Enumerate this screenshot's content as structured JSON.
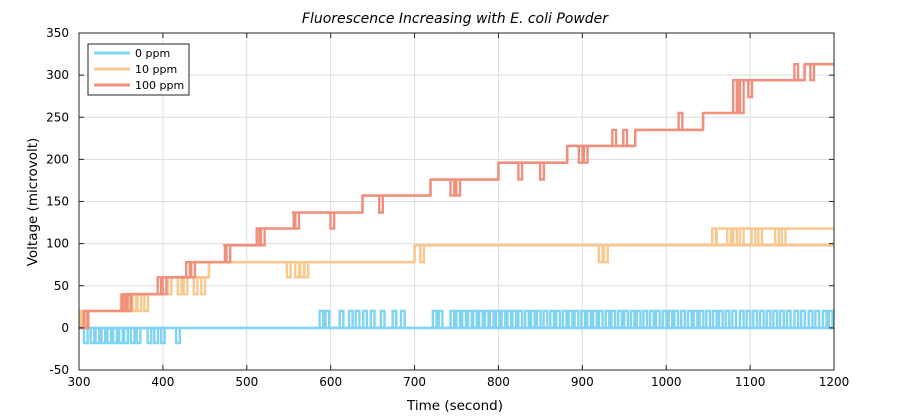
{
  "chart_data": {
    "type": "line",
    "title": "Fluorescence Increasing with E. coli Powder",
    "xlabel": "Time (second)",
    "ylabel": "Voltage (microvolt)",
    "xlim": [
      300,
      1200
    ],
    "ylim": [
      -50,
      350
    ],
    "xticks": [
      "300",
      "400",
      "500",
      "600",
      "700",
      "800",
      "900",
      "1000",
      "1100",
      "1200"
    ],
    "yticks": [
      "-50",
      "0",
      "50",
      "100",
      "150",
      "200",
      "250",
      "300",
      "350"
    ],
    "grid": true,
    "legend_position": "top-left",
    "series": [
      {
        "name": "0 ppm",
        "color": "#7fd3f3",
        "baseline": [
          [
            300,
            0
          ],
          [
            1200,
            0
          ]
        ],
        "spikes": [
          {
            "x": 308,
            "y": -18
          },
          {
            "x": 316,
            "y": -18
          },
          {
            "x": 322,
            "y": -18
          },
          {
            "x": 329,
            "y": -18
          },
          {
            "x": 336,
            "y": -18
          },
          {
            "x": 343,
            "y": -18
          },
          {
            "x": 350,
            "y": -18
          },
          {
            "x": 356,
            "y": -18
          },
          {
            "x": 364,
            "y": -18
          },
          {
            "x": 371,
            "y": -18
          },
          {
            "x": 384,
            "y": -18
          },
          {
            "x": 392,
            "y": -18
          },
          {
            "x": 400,
            "y": -18
          },
          {
            "x": 418,
            "y": -18
          },
          {
            "x": 589,
            "y": 20
          },
          {
            "x": 596,
            "y": 20
          },
          {
            "x": 613,
            "y": 20
          },
          {
            "x": 624,
            "y": 20
          },
          {
            "x": 632,
            "y": 20
          },
          {
            "x": 641,
            "y": 20
          },
          {
            "x": 650,
            "y": 20
          },
          {
            "x": 662,
            "y": 20
          },
          {
            "x": 676,
            "y": 20
          },
          {
            "x": 686,
            "y": 20
          },
          {
            "x": 724,
            "y": 20
          },
          {
            "x": 731,
            "y": 20
          },
          {
            "x": 745,
            "y": 20
          },
          {
            "x": 752,
            "y": 20
          },
          {
            "x": 759,
            "y": 20
          },
          {
            "x": 766,
            "y": 20
          },
          {
            "x": 772,
            "y": 20
          },
          {
            "x": 779,
            "y": 20
          },
          {
            "x": 786,
            "y": 20
          },
          {
            "x": 792,
            "y": 20
          },
          {
            "x": 799,
            "y": 20
          },
          {
            "x": 806,
            "y": 20
          },
          {
            "x": 813,
            "y": 20
          },
          {
            "x": 819,
            "y": 20
          },
          {
            "x": 826,
            "y": 20
          },
          {
            "x": 834,
            "y": 20
          },
          {
            "x": 841,
            "y": 20
          },
          {
            "x": 848,
            "y": 20
          },
          {
            "x": 856,
            "y": 20
          },
          {
            "x": 864,
            "y": 20
          },
          {
            "x": 871,
            "y": 20
          },
          {
            "x": 879,
            "y": 20
          },
          {
            "x": 886,
            "y": 20
          },
          {
            "x": 893,
            "y": 20
          },
          {
            "x": 901,
            "y": 20
          },
          {
            "x": 908,
            "y": 20
          },
          {
            "x": 915,
            "y": 20
          },
          {
            "x": 922,
            "y": 20
          },
          {
            "x": 930,
            "y": 20
          },
          {
            "x": 937,
            "y": 20
          },
          {
            "x": 945,
            "y": 20
          },
          {
            "x": 952,
            "y": 20
          },
          {
            "x": 960,
            "y": 20
          },
          {
            "x": 967,
            "y": 20
          },
          {
            "x": 975,
            "y": 20
          },
          {
            "x": 983,
            "y": 20
          },
          {
            "x": 990,
            "y": 20
          },
          {
            "x": 998,
            "y": 20
          },
          {
            "x": 1005,
            "y": 20
          },
          {
            "x": 1012,
            "y": 20
          },
          {
            "x": 1020,
            "y": 20
          },
          {
            "x": 1028,
            "y": 20
          },
          {
            "x": 1035,
            "y": 20
          },
          {
            "x": 1042,
            "y": 20
          },
          {
            "x": 1050,
            "y": 20
          },
          {
            "x": 1058,
            "y": 20
          },
          {
            "x": 1065,
            "y": 20
          },
          {
            "x": 1073,
            "y": 20
          },
          {
            "x": 1081,
            "y": 20
          },
          {
            "x": 1090,
            "y": 20
          },
          {
            "x": 1098,
            "y": 20
          },
          {
            "x": 1106,
            "y": 20
          },
          {
            "x": 1114,
            "y": 20
          },
          {
            "x": 1122,
            "y": 20
          },
          {
            "x": 1130,
            "y": 20
          },
          {
            "x": 1138,
            "y": 20
          },
          {
            "x": 1146,
            "y": 20
          },
          {
            "x": 1155,
            "y": 20
          },
          {
            "x": 1163,
            "y": 20
          },
          {
            "x": 1172,
            "y": 20
          },
          {
            "x": 1180,
            "y": 20
          },
          {
            "x": 1189,
            "y": 20
          },
          {
            "x": 1196,
            "y": 20
          }
        ]
      },
      {
        "name": "10 ppm",
        "color": "#f8c88e",
        "steps": [
          [
            300,
            0
          ],
          [
            311,
            0
          ],
          [
            311,
            20
          ],
          [
            360,
            20
          ],
          [
            360,
            40
          ],
          [
            398,
            40
          ],
          [
            398,
            60
          ],
          [
            455,
            60
          ],
          [
            455,
            78
          ],
          [
            700,
            78
          ],
          [
            700,
            98
          ],
          [
            1200,
            98
          ]
        ],
        "step_final": [
          [
            1060,
            98
          ],
          [
            1060,
            118
          ],
          [
            1200,
            118
          ]
        ],
        "spikes": [
          {
            "x": 300,
            "y": 20
          },
          {
            "x": 304,
            "y": 20
          },
          {
            "x": 307,
            "y": 20
          },
          {
            "x": 352,
            "y": 40
          },
          {
            "x": 366,
            "y": 20
          },
          {
            "x": 372,
            "y": 20
          },
          {
            "x": 380,
            "y": 20
          },
          {
            "x": 408,
            "y": 40
          },
          {
            "x": 420,
            "y": 40
          },
          {
            "x": 427,
            "y": 40
          },
          {
            "x": 439,
            "y": 40
          },
          {
            "x": 448,
            "y": 40
          },
          {
            "x": 542,
            "y": 78
          },
          {
            "x": 550,
            "y": 60
          },
          {
            "x": 560,
            "y": 60
          },
          {
            "x": 566,
            "y": 60
          },
          {
            "x": 571,
            "y": 60
          },
          {
            "x": 709,
            "y": 78
          },
          {
            "x": 741,
            "y": 98
          },
          {
            "x": 748,
            "y": 98
          },
          {
            "x": 755,
            "y": 98
          },
          {
            "x": 763,
            "y": 98
          },
          {
            "x": 772,
            "y": 98
          },
          {
            "x": 781,
            "y": 98
          },
          {
            "x": 788,
            "y": 98
          },
          {
            "x": 795,
            "y": 98
          },
          {
            "x": 802,
            "y": 98
          },
          {
            "x": 809,
            "y": 98
          },
          {
            "x": 817,
            "y": 98
          },
          {
            "x": 825,
            "y": 98
          },
          {
            "x": 832,
            "y": 98
          },
          {
            "x": 840,
            "y": 98
          },
          {
            "x": 848,
            "y": 98
          },
          {
            "x": 856,
            "y": 98
          },
          {
            "x": 866,
            "y": 98
          },
          {
            "x": 874,
            "y": 98
          },
          {
            "x": 885,
            "y": 98
          },
          {
            "x": 922,
            "y": 78
          },
          {
            "x": 928,
            "y": 78
          },
          {
            "x": 1057,
            "y": 118
          },
          {
            "x": 1075,
            "y": 98
          },
          {
            "x": 1082,
            "y": 98
          },
          {
            "x": 1090,
            "y": 98
          },
          {
            "x": 1104,
            "y": 98
          },
          {
            "x": 1112,
            "y": 98
          },
          {
            "x": 1132,
            "y": 98
          },
          {
            "x": 1140,
            "y": 98
          }
        ]
      },
      {
        "name": "100 ppm",
        "color": "#ef8f7c",
        "steps": [
          [
            300,
            0
          ],
          [
            311,
            0
          ],
          [
            311,
            20
          ],
          [
            352,
            20
          ],
          [
            352,
            40
          ],
          [
            398,
            40
          ],
          [
            398,
            60
          ],
          [
            433,
            60
          ],
          [
            433,
            78
          ],
          [
            474,
            78
          ],
          [
            474,
            98
          ],
          [
            515,
            98
          ],
          [
            515,
            118
          ],
          [
            556,
            118
          ],
          [
            556,
            137
          ],
          [
            638,
            137
          ],
          [
            638,
            157
          ],
          [
            719,
            157
          ],
          [
            719,
            176
          ],
          [
            800,
            176
          ],
          [
            800,
            196
          ],
          [
            882,
            196
          ],
          [
            882,
            216
          ],
          [
            963,
            216
          ],
          [
            963,
            235
          ],
          [
            1044,
            235
          ],
          [
            1044,
            255
          ],
          [
            1085,
            255
          ],
          [
            1085,
            294
          ],
          [
            1165,
            294
          ],
          [
            1165,
            313
          ],
          [
            1200,
            313
          ]
        ],
        "spikes": [
          {
            "x": 308,
            "y": 20
          },
          {
            "x": 353,
            "y": 20
          },
          {
            "x": 356,
            "y": 40
          },
          {
            "x": 360,
            "y": 20
          },
          {
            "x": 396,
            "y": 60
          },
          {
            "x": 402,
            "y": 40
          },
          {
            "x": 430,
            "y": 78
          },
          {
            "x": 436,
            "y": 60
          },
          {
            "x": 474,
            "y": 98
          },
          {
            "x": 478,
            "y": 78
          },
          {
            "x": 514,
            "y": 118
          },
          {
            "x": 519,
            "y": 98
          },
          {
            "x": 523,
            "y": 118
          },
          {
            "x": 556,
            "y": 137
          },
          {
            "x": 560,
            "y": 118
          },
          {
            "x": 588,
            "y": 137
          },
          {
            "x": 596,
            "y": 137
          },
          {
            "x": 602,
            "y": 118
          },
          {
            "x": 655,
            "y": 157
          },
          {
            "x": 660,
            "y": 137
          },
          {
            "x": 665,
            "y": 157
          },
          {
            "x": 737,
            "y": 176
          },
          {
            "x": 745,
            "y": 157
          },
          {
            "x": 752,
            "y": 157
          },
          {
            "x": 820,
            "y": 196
          },
          {
            "x": 826,
            "y": 176
          },
          {
            "x": 848,
            "y": 196
          },
          {
            "x": 852,
            "y": 176
          },
          {
            "x": 893,
            "y": 216
          },
          {
            "x": 898,
            "y": 196
          },
          {
            "x": 904,
            "y": 196
          },
          {
            "x": 938,
            "y": 235
          },
          {
            "x": 946,
            "y": 216
          },
          {
            "x": 951,
            "y": 235
          },
          {
            "x": 970,
            "y": 235
          },
          {
            "x": 1017,
            "y": 255
          },
          {
            "x": 1024,
            "y": 235
          },
          {
            "x": 1082,
            "y": 294
          },
          {
            "x": 1090,
            "y": 255
          },
          {
            "x": 1100,
            "y": 274
          },
          {
            "x": 1110,
            "y": 294
          },
          {
            "x": 1155,
            "y": 313
          },
          {
            "x": 1162,
            "y": 294
          },
          {
            "x": 1168,
            "y": 313
          },
          {
            "x": 1174,
            "y": 294
          },
          {
            "x": 1186,
            "y": 313
          }
        ]
      }
    ]
  }
}
